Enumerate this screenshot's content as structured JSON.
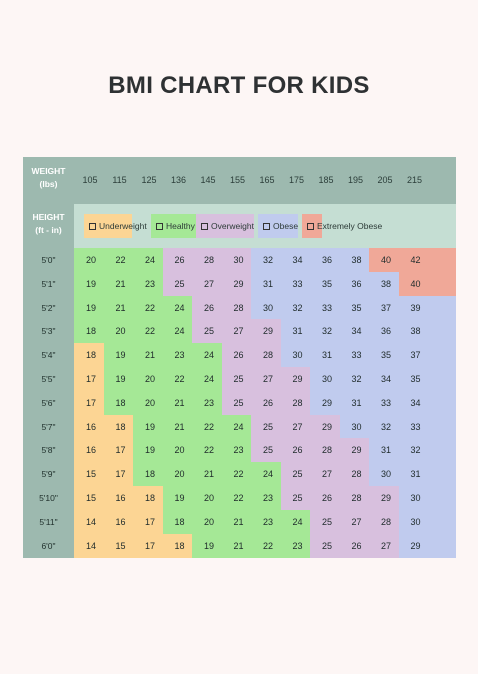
{
  "title": "BMI CHART FOR KIDS",
  "header": {
    "weight_label_1": "WEIGHT",
    "weight_label_2": "(lbs)",
    "height_label_1": "HEIGHT",
    "height_label_2": "(ft - in)"
  },
  "colors": {
    "u": "#fcd594",
    "h": "#a5e896",
    "o": "#d8c0de",
    "b": "#c0cbee",
    "x": "#f0a898"
  },
  "legend": [
    {
      "label": "Underweight",
      "cat": "u"
    },
    {
      "label": "Healthy",
      "cat": "h"
    },
    {
      "label": "Overweight",
      "cat": "o"
    },
    {
      "label": "Obese",
      "cat": "b"
    },
    {
      "label": "Extremely Obese",
      "cat": "x"
    }
  ],
  "chart_data": {
    "type": "table",
    "title": "BMI CHART FOR KIDS",
    "x_label": "WEIGHT (lbs)",
    "y_label": "HEIGHT (ft - in)",
    "weights": [
      "105",
      "115",
      "125",
      "136",
      "145",
      "155",
      "165",
      "175",
      "185",
      "195",
      "205",
      "215"
    ],
    "heights": [
      "5'0\"",
      "5'1\"",
      "5'2\"",
      "5'3\"",
      "5'4\"",
      "5'5\"",
      "5'6\"",
      "5'7\"",
      "5'8\"",
      "5'9\"",
      "5'10\"",
      "5'11\"",
      "6'0\""
    ],
    "values": [
      [
        20,
        22,
        24,
        26,
        28,
        30,
        32,
        34,
        36,
        38,
        40,
        42
      ],
      [
        19,
        21,
        23,
        25,
        27,
        29,
        31,
        33,
        35,
        36,
        38,
        40
      ],
      [
        19,
        21,
        22,
        24,
        26,
        28,
        30,
        32,
        33,
        35,
        37,
        39
      ],
      [
        18,
        20,
        22,
        24,
        25,
        27,
        29,
        31,
        32,
        34,
        36,
        38
      ],
      [
        18,
        19,
        21,
        23,
        24,
        26,
        28,
        30,
        31,
        33,
        35,
        37
      ],
      [
        17,
        19,
        20,
        22,
        24,
        25,
        27,
        29,
        30,
        32,
        34,
        35
      ],
      [
        17,
        18,
        20,
        21,
        23,
        25,
        26,
        28,
        29,
        31,
        33,
        34
      ],
      [
        16,
        18,
        19,
        21,
        22,
        24,
        25,
        27,
        29,
        30,
        32,
        33
      ],
      [
        16,
        17,
        19,
        20,
        22,
        23,
        25,
        26,
        28,
        29,
        31,
        32
      ],
      [
        15,
        17,
        18,
        20,
        21,
        22,
        24,
        25,
        27,
        28,
        30,
        31
      ],
      [
        15,
        16,
        18,
        19,
        20,
        22,
        23,
        25,
        26,
        28,
        29,
        30
      ],
      [
        14,
        16,
        17,
        18,
        20,
        21,
        23,
        24,
        25,
        27,
        28,
        30
      ],
      [
        14,
        15,
        17,
        18,
        19,
        21,
        22,
        23,
        25,
        26,
        27,
        29
      ]
    ],
    "categories": [
      [
        "h",
        "h",
        "h",
        "o",
        "o",
        "o",
        "b",
        "b",
        "b",
        "b",
        "x",
        "x"
      ],
      [
        "h",
        "h",
        "h",
        "o",
        "o",
        "o",
        "b",
        "b",
        "b",
        "b",
        "b",
        "x"
      ],
      [
        "h",
        "h",
        "h",
        "h",
        "o",
        "o",
        "b",
        "b",
        "b",
        "b",
        "b",
        "b"
      ],
      [
        "h",
        "h",
        "h",
        "h",
        "o",
        "o",
        "o",
        "b",
        "b",
        "b",
        "b",
        "b"
      ],
      [
        "u",
        "h",
        "h",
        "h",
        "h",
        "o",
        "o",
        "b",
        "b",
        "b",
        "b",
        "b"
      ],
      [
        "u",
        "h",
        "h",
        "h",
        "h",
        "o",
        "o",
        "o",
        "b",
        "b",
        "b",
        "b"
      ],
      [
        "u",
        "h",
        "h",
        "h",
        "h",
        "o",
        "o",
        "o",
        "b",
        "b",
        "b",
        "b"
      ],
      [
        "u",
        "u",
        "h",
        "h",
        "h",
        "h",
        "o",
        "o",
        "o",
        "b",
        "b",
        "b"
      ],
      [
        "u",
        "u",
        "h",
        "h",
        "h",
        "h",
        "o",
        "o",
        "o",
        "o",
        "b",
        "b"
      ],
      [
        "u",
        "u",
        "h",
        "h",
        "h",
        "h",
        "h",
        "o",
        "o",
        "o",
        "b",
        "b"
      ],
      [
        "u",
        "u",
        "u",
        "h",
        "h",
        "h",
        "h",
        "o",
        "o",
        "o",
        "o",
        "b"
      ],
      [
        "u",
        "u",
        "u",
        "h",
        "h",
        "h",
        "h",
        "h",
        "o",
        "o",
        "o",
        "b"
      ],
      [
        "u",
        "u",
        "u",
        "u",
        "h",
        "h",
        "h",
        "h",
        "o",
        "o",
        "o",
        "b"
      ]
    ]
  }
}
